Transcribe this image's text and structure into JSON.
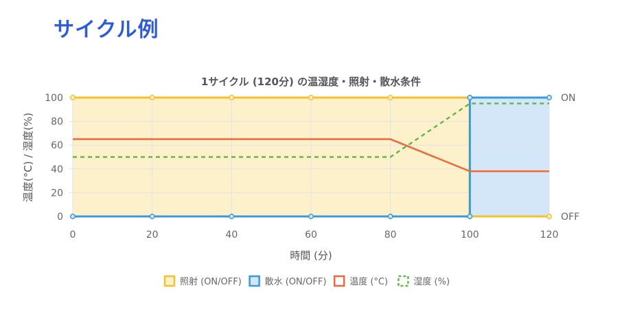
{
  "page_title": "サイクル例",
  "chart_data": {
    "type": "line",
    "title": "1サイクル (120分) の温湿度・照射・散水条件",
    "xlabel": "時間 (分)",
    "ylabel": "温度(°C) / 湿度(%)",
    "xlim": [
      0,
      120
    ],
    "ylim": [
      0,
      100
    ],
    "x_ticks": [
      "0",
      "20",
      "40",
      "60",
      "80",
      "100",
      "120"
    ],
    "y_ticks": [
      "0",
      "20",
      "40",
      "60",
      "80",
      "100"
    ],
    "y2_ticks": [
      "OFF",
      "ON"
    ],
    "grid": true,
    "legend_position": "bottom",
    "series": [
      {
        "name": "照射 (ON/OFF)",
        "axis": "right",
        "color": "#f6c12b",
        "fill": "#fdf1cc",
        "style": "solid",
        "points": [
          [
            0,
            100
          ],
          [
            20,
            100
          ],
          [
            40,
            100
          ],
          [
            60,
            100
          ],
          [
            80,
            100
          ],
          [
            100,
            100
          ],
          [
            100,
            0
          ],
          [
            120,
            0
          ]
        ]
      },
      {
        "name": "散水 (ON/OFF)",
        "axis": "right",
        "color": "#3a9ad9",
        "fill": "#d3e7f9",
        "style": "solid",
        "points": [
          [
            0,
            0
          ],
          [
            20,
            0
          ],
          [
            40,
            0
          ],
          [
            60,
            0
          ],
          [
            80,
            0
          ],
          [
            100,
            0
          ],
          [
            100,
            100
          ],
          [
            120,
            100
          ]
        ]
      },
      {
        "name": "温度 (°C)",
        "axis": "left",
        "color": "#f0673c",
        "style": "solid",
        "points": [
          [
            0,
            65
          ],
          [
            80,
            65
          ],
          [
            100,
            38
          ],
          [
            120,
            38
          ]
        ]
      },
      {
        "name": "湿度 (%)",
        "axis": "left",
        "color": "#68b54b",
        "style": "dashed",
        "points": [
          [
            0,
            50
          ],
          [
            80,
            50
          ],
          [
            100,
            95
          ],
          [
            120,
            95
          ]
        ]
      }
    ]
  }
}
